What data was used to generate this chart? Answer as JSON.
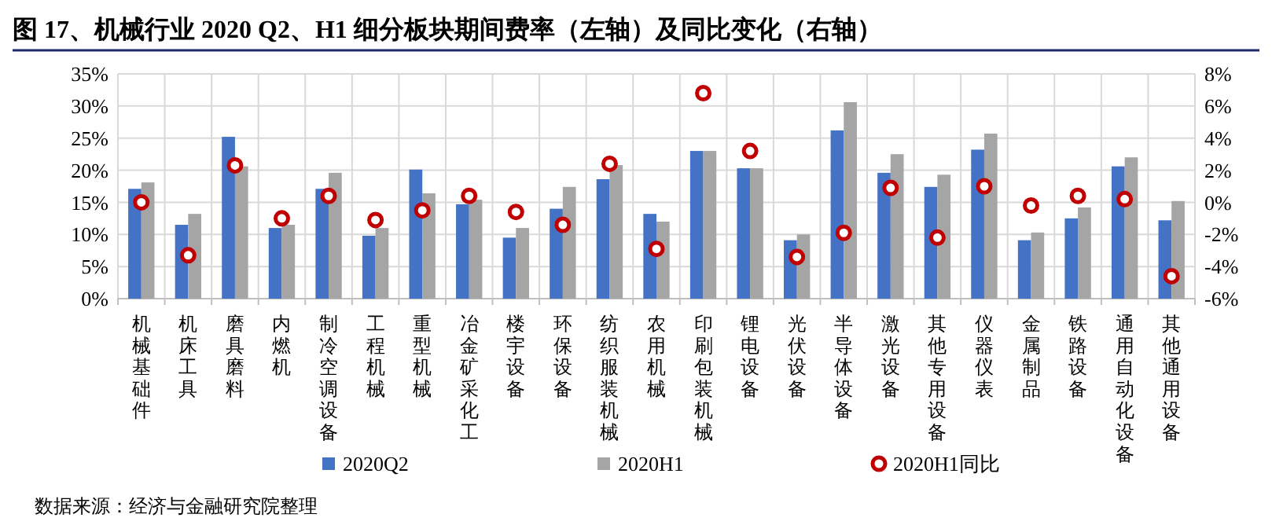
{
  "chart_data": {
    "type": "bar",
    "title": "图 17、机械行业 2020 Q2、H1 细分板块期间费率（左轴）及同比变化（右轴）",
    "categories": [
      "机械基础件",
      "机床工具",
      "磨具磨料",
      "内燃机",
      "制冷空调设备",
      "工程机械",
      "重型机械",
      "冶金矿采化工",
      "楼宇设备",
      "环保设备",
      "纺织服装机械",
      "农用机械",
      "印刷包装机械",
      "锂电设备",
      "光伏设备",
      "半导体设备",
      "激光设备",
      "其他专用设备",
      "仪器仪表",
      "金属制品",
      "铁路设备",
      "通用自动化设备",
      "其他通用设备"
    ],
    "series": [
      {
        "name": "2020Q2",
        "color": "#4472c4",
        "values": [
          17.1,
          11.5,
          25.2,
          11.0,
          17.1,
          9.8,
          20.1,
          14.7,
          9.5,
          14.0,
          18.6,
          13.2,
          23.0,
          20.3,
          9.1,
          26.2,
          19.6,
          17.4,
          23.2,
          9.1,
          12.5,
          20.6,
          12.2
        ]
      },
      {
        "name": "2020H1",
        "color": "#a5a5a5",
        "values": [
          18.1,
          13.2,
          20.6,
          11.5,
          19.6,
          11.0,
          16.4,
          15.4,
          11.0,
          17.4,
          20.8,
          12.0,
          23.0,
          20.3,
          10.0,
          30.6,
          22.5,
          19.3,
          25.7,
          10.3,
          14.2,
          22.0,
          15.2
        ]
      },
      {
        "name": "2020H1同比",
        "type": "scatter",
        "axis": "y2",
        "color": "#c00000",
        "values": [
          0.0,
          -3.3,
          2.3,
          -1.0,
          0.4,
          -1.1,
          -0.5,
          0.4,
          -0.6,
          -1.4,
          2.4,
          -2.9,
          6.8,
          3.2,
          -3.4,
          -1.9,
          0.9,
          -2.2,
          1.0,
          -0.2,
          0.4,
          0.2,
          -4.6
        ]
      }
    ],
    "ylim": [
      0,
      35
    ],
    "yticks": [
      {
        "value": 0,
        "label": "0%"
      },
      {
        "value": 5,
        "label": "5%"
      },
      {
        "value": 10,
        "label": "10%"
      },
      {
        "value": 15,
        "label": "15%"
      },
      {
        "value": 20,
        "label": "20%"
      },
      {
        "value": 25,
        "label": "25%"
      },
      {
        "value": 30,
        "label": "30%"
      },
      {
        "value": 35,
        "label": "35%"
      }
    ],
    "y2lim": [
      -6,
      8
    ],
    "y2ticks": [
      {
        "value": -6,
        "label": "-6%"
      },
      {
        "value": -4,
        "label": "-4%"
      },
      {
        "value": -2,
        "label": "-2%"
      },
      {
        "value": 0,
        "label": "0%"
      },
      {
        "value": 2,
        "label": "2%"
      },
      {
        "value": 4,
        "label": "4%"
      },
      {
        "value": 6,
        "label": "6%"
      },
      {
        "value": 8,
        "label": "8%"
      }
    ],
    "grid": true,
    "legend": "bottom",
    "marker": "circle",
    "annotations": [
      "数据来源：经济与金融研究院整理"
    ]
  }
}
